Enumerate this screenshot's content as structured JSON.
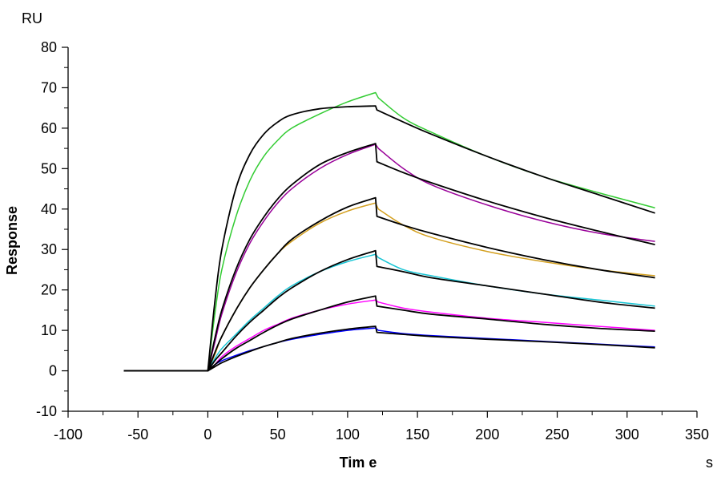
{
  "chart_data": {
    "type": "line",
    "xlabel": "Tim e",
    "ylabel": "Response",
    "x_unit": "s",
    "y_unit": "RU",
    "xlim": [
      -100,
      350
    ],
    "ylim": [
      -10,
      80
    ],
    "x_ticks": [
      -100,
      -50,
      0,
      50,
      100,
      150,
      200,
      250,
      300,
      350
    ],
    "y_ticks": [
      -10,
      0,
      10,
      20,
      30,
      40,
      50,
      60,
      70,
      80
    ],
    "grid": false,
    "legend": "none",
    "series": [
      {
        "kind": "measured",
        "color": "#33cc33",
        "x": [
          -60,
          0,
          5,
          10,
          20,
          30,
          40,
          50,
          60,
          80,
          100,
          120,
          122,
          140,
          160,
          200,
          240,
          280,
          320
        ],
        "y": [
          0,
          0,
          14,
          25,
          38,
          47,
          53,
          57,
          60,
          63.5,
          66.5,
          68.8,
          67.5,
          62.5,
          59,
          53,
          48,
          44,
          40.3
        ]
      },
      {
        "kind": "measured",
        "color": "#990099",
        "x": [
          -60,
          0,
          5,
          10,
          20,
          30,
          40,
          50,
          60,
          80,
          100,
          120,
          122,
          140,
          160,
          200,
          240,
          280,
          320
        ],
        "y": [
          0,
          0,
          7,
          14,
          24,
          31.5,
          37,
          41.5,
          45,
          50,
          53.5,
          56,
          55,
          50,
          46,
          41,
          37,
          34,
          32
        ]
      },
      {
        "kind": "measured",
        "color": "#d4a020",
        "x": [
          -60,
          0,
          5,
          10,
          20,
          30,
          40,
          50,
          60,
          80,
          100,
          120,
          122,
          140,
          160,
          200,
          240,
          280,
          320
        ],
        "y": [
          0,
          0,
          4,
          8.5,
          15,
          20.5,
          25,
          29,
          32,
          36.5,
          39.5,
          41.5,
          40,
          36,
          33,
          29.5,
          27,
          25,
          23.5
        ]
      },
      {
        "kind": "measured",
        "color": "#17c5d5",
        "x": [
          -60,
          0,
          5,
          10,
          20,
          30,
          40,
          50,
          60,
          80,
          100,
          120,
          122,
          140,
          160,
          200,
          240,
          280,
          320
        ],
        "y": [
          0,
          0,
          3,
          5.5,
          9,
          12.5,
          15.5,
          18.5,
          21,
          24.5,
          27,
          28.8,
          28,
          25,
          23.5,
          21,
          19,
          17.5,
          16
        ]
      },
      {
        "kind": "measured",
        "color": "#ff00ff",
        "x": [
          -60,
          0,
          5,
          10,
          20,
          30,
          40,
          50,
          60,
          80,
          100,
          120,
          122,
          140,
          160,
          200,
          240,
          280,
          320
        ],
        "y": [
          0,
          0,
          1.5,
          3.5,
          6,
          8,
          10,
          11.5,
          13,
          15,
          16.5,
          17.5,
          17,
          15.5,
          14.5,
          13,
          12,
          11,
          10
        ]
      },
      {
        "kind": "measured",
        "color": "#0000ff",
        "x": [
          -60,
          0,
          5,
          10,
          20,
          30,
          40,
          50,
          60,
          80,
          100,
          120,
          122,
          140,
          160,
          200,
          240,
          280,
          320
        ],
        "y": [
          0,
          0,
          1.5,
          2.5,
          3.8,
          5,
          6,
          7,
          7.8,
          9,
          10,
          10.6,
          10,
          9.2,
          8.7,
          8,
          7.3,
          6.6,
          5.9
        ]
      },
      {
        "kind": "fit",
        "color": "#000000",
        "x": [
          -60,
          0,
          5,
          10,
          20,
          30,
          40,
          50,
          60,
          80,
          100,
          120,
          121,
          140,
          160,
          200,
          240,
          280,
          320
        ],
        "y": [
          0,
          0,
          17,
          30,
          45,
          53.5,
          58.5,
          61.5,
          63.3,
          64.8,
          65.3,
          65.5,
          64.5,
          61.5,
          58.5,
          53,
          48,
          43.5,
          39
        ]
      },
      {
        "kind": "fit",
        "color": "#000000",
        "x": [
          -60,
          0,
          5,
          10,
          20,
          30,
          40,
          50,
          60,
          80,
          100,
          120,
          121,
          140,
          160,
          200,
          240,
          280,
          320
        ],
        "y": [
          0,
          0,
          8,
          15,
          25,
          32.5,
          38,
          42.5,
          46,
          51,
          54,
          56.2,
          51.7,
          49,
          46.5,
          42,
          38,
          34.5,
          31.2
        ]
      },
      {
        "kind": "fit",
        "color": "#000000",
        "x": [
          -60,
          0,
          5,
          10,
          20,
          30,
          40,
          50,
          60,
          80,
          100,
          120,
          121,
          140,
          160,
          200,
          240,
          280,
          320
        ],
        "y": [
          0,
          0,
          4.5,
          8.5,
          15,
          20.5,
          25,
          29,
          32.5,
          37,
          40.5,
          42.8,
          38.2,
          36,
          34,
          30.5,
          27.5,
          25,
          23
        ]
      },
      {
        "kind": "fit",
        "color": "#000000",
        "x": [
          -60,
          0,
          5,
          10,
          20,
          30,
          40,
          50,
          60,
          80,
          100,
          120,
          121,
          140,
          160,
          200,
          240,
          280,
          320
        ],
        "y": [
          0,
          0,
          2.5,
          4.5,
          8.5,
          12,
          15,
          18,
          20.5,
          24.5,
          27.5,
          29.7,
          25.8,
          24.5,
          23,
          21,
          19,
          17,
          15.5
        ]
      },
      {
        "kind": "fit",
        "color": "#000000",
        "x": [
          -60,
          0,
          5,
          10,
          20,
          30,
          40,
          50,
          60,
          80,
          100,
          120,
          121,
          140,
          160,
          200,
          240,
          280,
          320
        ],
        "y": [
          0,
          0,
          1.5,
          3,
          5.5,
          7.5,
          9.5,
          11.3,
          12.8,
          15,
          17,
          18.5,
          16,
          15,
          14,
          12.8,
          11.5,
          10.5,
          9.8
        ]
      },
      {
        "kind": "fit",
        "color": "#000000",
        "x": [
          -60,
          0,
          5,
          10,
          20,
          30,
          40,
          50,
          60,
          80,
          100,
          120,
          121,
          140,
          160,
          200,
          240,
          280,
          320
        ],
        "y": [
          0,
          0,
          1,
          2,
          3.5,
          4.8,
          6,
          7,
          8,
          9.3,
          10.3,
          11,
          9.5,
          9,
          8.5,
          7.8,
          7.2,
          6.5,
          5.7
        ]
      }
    ]
  }
}
